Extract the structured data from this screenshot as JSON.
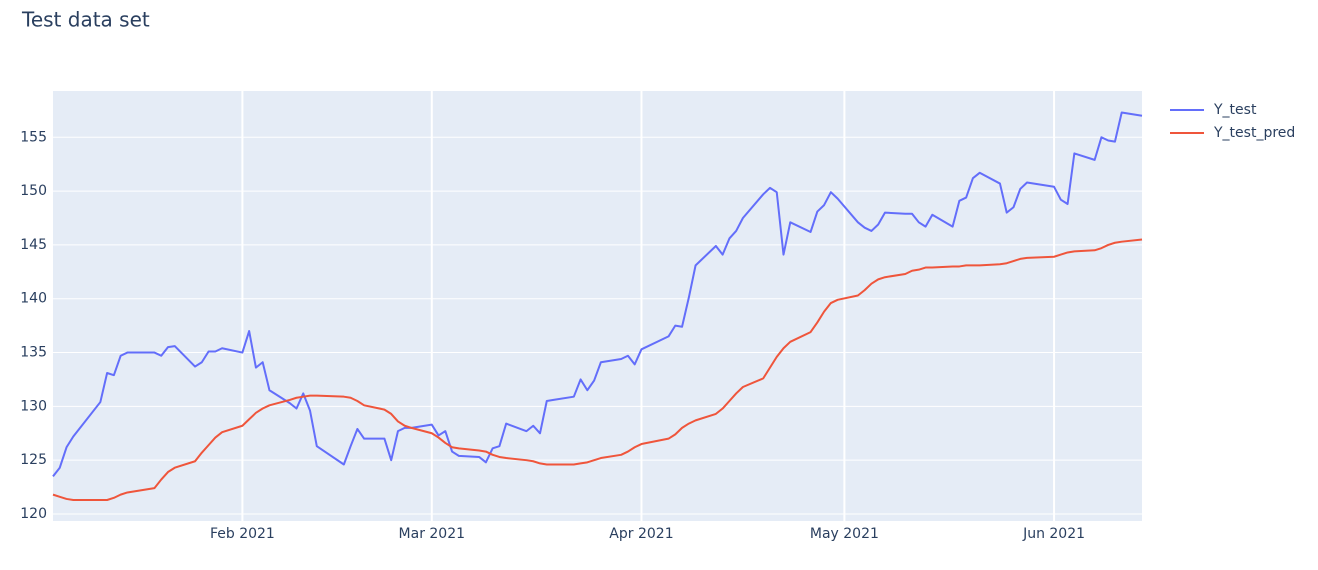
{
  "chart_data": {
    "type": "line",
    "title": "Test data set",
    "x": [
      "2021-01-04",
      "2021-01-05",
      "2021-01-06",
      "2021-01-07",
      "2021-01-11",
      "2021-01-12",
      "2021-01-13",
      "2021-01-14",
      "2021-01-15",
      "2021-01-19",
      "2021-01-20",
      "2021-01-21",
      "2021-01-22",
      "2021-01-25",
      "2021-01-26",
      "2021-01-27",
      "2021-01-28",
      "2021-01-29",
      "2021-02-01",
      "2021-02-02",
      "2021-02-03",
      "2021-02-04",
      "2021-02-05",
      "2021-02-08",
      "2021-02-09",
      "2021-02-10",
      "2021-02-11",
      "2021-02-12",
      "2021-02-16",
      "2021-02-17",
      "2021-02-18",
      "2021-02-19",
      "2021-02-22",
      "2021-02-23",
      "2021-02-24",
      "2021-02-25",
      "2021-02-26",
      "2021-03-01",
      "2021-03-02",
      "2021-03-03",
      "2021-03-04",
      "2021-03-05",
      "2021-03-08",
      "2021-03-09",
      "2021-03-10",
      "2021-03-11",
      "2021-03-12",
      "2021-03-15",
      "2021-03-16",
      "2021-03-17",
      "2021-03-18",
      "2021-03-19",
      "2021-03-22",
      "2021-03-23",
      "2021-03-24",
      "2021-03-25",
      "2021-03-26",
      "2021-03-29",
      "2021-03-30",
      "2021-03-31",
      "2021-04-01",
      "2021-04-05",
      "2021-04-06",
      "2021-04-07",
      "2021-04-08",
      "2021-04-09",
      "2021-04-12",
      "2021-04-13",
      "2021-04-14",
      "2021-04-15",
      "2021-04-16",
      "2021-04-19",
      "2021-04-20",
      "2021-04-21",
      "2021-04-22",
      "2021-04-23",
      "2021-04-26",
      "2021-04-27",
      "2021-04-28",
      "2021-04-29",
      "2021-04-30",
      "2021-05-03",
      "2021-05-04",
      "2021-05-05",
      "2021-05-06",
      "2021-05-07",
      "2021-05-10",
      "2021-05-11",
      "2021-05-12",
      "2021-05-13",
      "2021-05-14",
      "2021-05-17",
      "2021-05-18",
      "2021-05-19",
      "2021-05-20",
      "2021-05-21",
      "2021-05-24",
      "2021-05-25",
      "2021-05-26",
      "2021-05-27",
      "2021-05-28",
      "2021-06-01",
      "2021-06-02",
      "2021-06-03",
      "2021-06-04",
      "2021-06-07",
      "2021-06-08",
      "2021-06-09",
      "2021-06-10",
      "2021-06-11",
      "2021-06-14"
    ],
    "series": [
      {
        "name": "Y_test",
        "color": "#636efa",
        "values": [
          123.5,
          124.3,
          126.2,
          127.2,
          130.4,
          133.1,
          132.9,
          134.7,
          135.0,
          135.0,
          134.7,
          135.5,
          135.6,
          133.7,
          134.1,
          135.1,
          135.1,
          135.4,
          135.0,
          137.0,
          133.6,
          134.1,
          131.5,
          130.3,
          129.8,
          131.2,
          129.6,
          126.3,
          124.6,
          126.3,
          127.9,
          127.0,
          127.0,
          125.0,
          127.7,
          128.0,
          128.0,
          128.3,
          127.3,
          127.7,
          125.8,
          125.4,
          125.3,
          124.8,
          126.1,
          126.3,
          128.4,
          127.7,
          128.2,
          127.5,
          130.5,
          130.6,
          130.9,
          132.5,
          131.5,
          132.4,
          134.1,
          134.4,
          134.7,
          133.9,
          135.3,
          136.5,
          137.5,
          137.4,
          140.1,
          143.1,
          144.9,
          144.1,
          145.6,
          146.3,
          147.5,
          149.7,
          150.3,
          149.9,
          144.1,
          147.1,
          146.2,
          148.1,
          148.7,
          149.9,
          149.3,
          147.1,
          146.6,
          146.3,
          146.9,
          148.0,
          147.9,
          147.9,
          147.1,
          146.7,
          147.8,
          146.7,
          149.1,
          149.4,
          151.2,
          151.7,
          150.7,
          148.0,
          148.5,
          150.2,
          150.8,
          150.4,
          149.2,
          148.8,
          153.5,
          152.9,
          155.0,
          154.7,
          154.6,
          157.3,
          157.0
        ]
      },
      {
        "name": "Y_test_pred",
        "color": "#ef553b",
        "values": [
          121.8,
          121.6,
          121.4,
          121.3,
          121.3,
          121.3,
          121.5,
          121.8,
          122.0,
          122.4,
          123.2,
          123.9,
          124.3,
          124.9,
          125.7,
          126.4,
          127.1,
          127.6,
          128.2,
          128.8,
          129.4,
          129.8,
          130.1,
          130.6,
          130.8,
          130.9,
          131.0,
          131.0,
          130.9,
          130.8,
          130.5,
          130.1,
          129.7,
          129.3,
          128.6,
          128.2,
          128.0,
          127.5,
          127.1,
          126.6,
          126.2,
          126.1,
          125.9,
          125.8,
          125.5,
          125.3,
          125.2,
          125.0,
          124.9,
          124.7,
          124.6,
          124.6,
          124.6,
          124.7,
          124.8,
          125.0,
          125.2,
          125.5,
          125.8,
          126.2,
          126.5,
          127.0,
          127.4,
          128.0,
          128.4,
          128.7,
          129.3,
          129.8,
          130.5,
          131.2,
          131.8,
          132.6,
          133.6,
          134.6,
          135.4,
          136.0,
          136.9,
          137.8,
          138.8,
          139.6,
          139.9,
          140.3,
          140.8,
          141.4,
          141.8,
          142.0,
          142.3,
          142.6,
          142.7,
          142.9,
          142.9,
          143.0,
          143.0,
          143.1,
          143.1,
          143.1,
          143.2,
          143.3,
          143.5,
          143.7,
          143.8,
          143.9,
          144.1,
          144.3,
          144.4,
          144.5,
          144.7,
          145.0,
          145.2,
          145.3,
          145.5
        ]
      }
    ],
    "xlim": [
      "2021-01-04",
      "2021-06-14"
    ],
    "xticks": [
      {
        "value": "2021-02-01",
        "label": "Feb 2021"
      },
      {
        "value": "2021-03-01",
        "label": "Mar 2021"
      },
      {
        "value": "2021-04-01",
        "label": "Apr 2021"
      },
      {
        "value": "2021-05-01",
        "label": "May 2021"
      },
      {
        "value": "2021-06-01",
        "label": "Jun 2021"
      }
    ],
    "ylim": [
      119.35,
      159.3
    ],
    "yticks": [
      120,
      125,
      130,
      135,
      140,
      145,
      150,
      155
    ],
    "grid": true,
    "legend": "right"
  }
}
